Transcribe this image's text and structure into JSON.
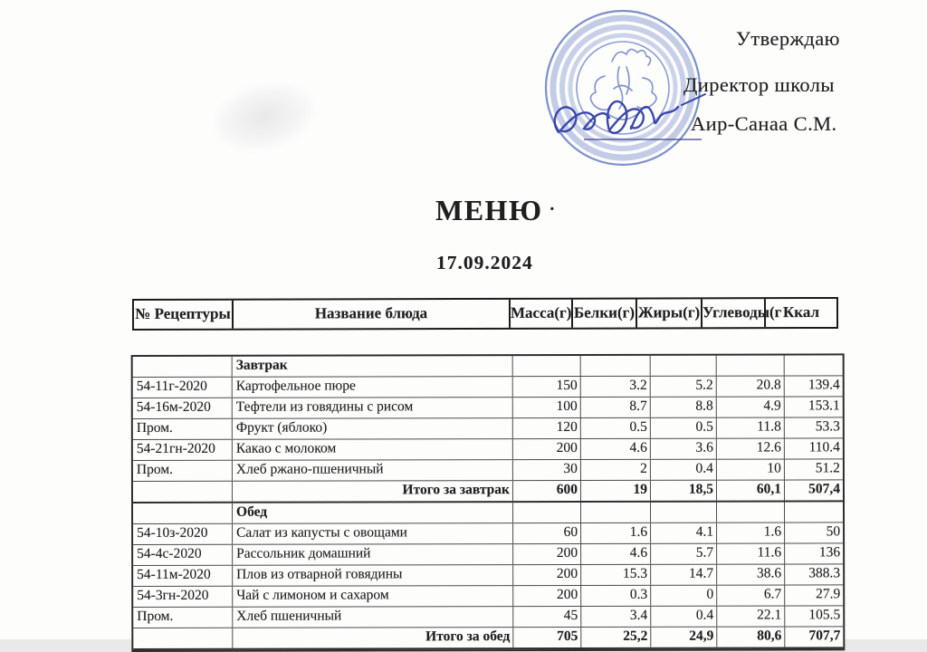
{
  "approval": {
    "approve_label": "Утверждаю",
    "role": "Директор школы",
    "name": "Аир-Санаа С.М."
  },
  "title": "МЕНЮ",
  "title_dot": "·",
  "date": "17.09.2024",
  "table": {
    "headers": [
      "№ Рецептуры",
      "Название блюда",
      "Масса(г)",
      "Белки(г)",
      "Жиры(г)",
      "Углеводы(г",
      "Ккал"
    ],
    "rows": [
      {
        "type": "section",
        "code": "",
        "name": "Завтрак",
        "mass": "",
        "protein": "",
        "fat": "",
        "carbs": "",
        "kcal": ""
      },
      {
        "type": "item",
        "code": "54-11г-2020",
        "name": "Картофельное пюре",
        "mass": "150",
        "protein": "3.2",
        "fat": "5.2",
        "carbs": "20.8",
        "kcal": "139.4"
      },
      {
        "type": "item",
        "code": "54-16м-2020",
        "name": "Тефтели из говядины с рисом",
        "mass": "100",
        "protein": "8.7",
        "fat": "8.8",
        "carbs": "4.9",
        "kcal": "153.1"
      },
      {
        "type": "item",
        "code": "Пром.",
        "name": "Фрукт (яблоко)",
        "mass": "120",
        "protein": "0.5",
        "fat": "0.5",
        "carbs": "11.8",
        "kcal": "53.3"
      },
      {
        "type": "item",
        "code": "54-21гн-2020",
        "name": "Какао с молоком",
        "mass": "200",
        "protein": "4.6",
        "fat": "3.6",
        "carbs": "12.6",
        "kcal": "110.4"
      },
      {
        "type": "item",
        "code": "Пром.",
        "name": "Хлеб ржано-пшеничный",
        "mass": "30",
        "protein": "2",
        "fat": "0.4",
        "carbs": "10",
        "kcal": "51.2"
      },
      {
        "type": "total",
        "code": "",
        "name": "Итого за завтрак",
        "mass": "600",
        "protein": "19",
        "fat": "18,5",
        "carbs": "60,1",
        "kcal": "507,4"
      },
      {
        "type": "section",
        "code": "",
        "name": "Обед",
        "mass": "",
        "protein": "",
        "fat": "",
        "carbs": "",
        "kcal": ""
      },
      {
        "type": "item",
        "code": "54-10з-2020",
        "name": "Салат из капусты с овощами",
        "mass": "60",
        "protein": "1.6",
        "fat": "4.1",
        "carbs": "1.6",
        "kcal": "50"
      },
      {
        "type": "item",
        "code": "54-4с-2020",
        "name": "Рассольник домашний",
        "mass": "200",
        "protein": "4.6",
        "fat": "5.7",
        "carbs": "11.6",
        "kcal": "136"
      },
      {
        "type": "item",
        "code": "54-11м-2020",
        "name": "Плов из отварной говядины",
        "mass": "200",
        "protein": "15.3",
        "fat": "14.7",
        "carbs": "38.6",
        "kcal": "388.3"
      },
      {
        "type": "item",
        "code": "54-3гн-2020",
        "name": "Чай с лимоном и сахаром",
        "mass": "200",
        "protein": "0.3",
        "fat": "0",
        "carbs": "6.7",
        "kcal": "27.9"
      },
      {
        "type": "item",
        "code": "Пром.",
        "name": "Хлеб пшеничный",
        "mass": "45",
        "protein": "3.4",
        "fat": "0.4",
        "carbs": "22.1",
        "kcal": "105.5"
      },
      {
        "type": "total",
        "code": "",
        "name": "Итого за обед",
        "mass": "705",
        "protein": "25,2",
        "fat": "24,9",
        "carbs": "80,6",
        "kcal": "707,7"
      }
    ]
  },
  "colors": {
    "stamp_blue": "#5b74c2",
    "signature_blue": "#2c3aa6",
    "ink": "#1f1f1f"
  }
}
